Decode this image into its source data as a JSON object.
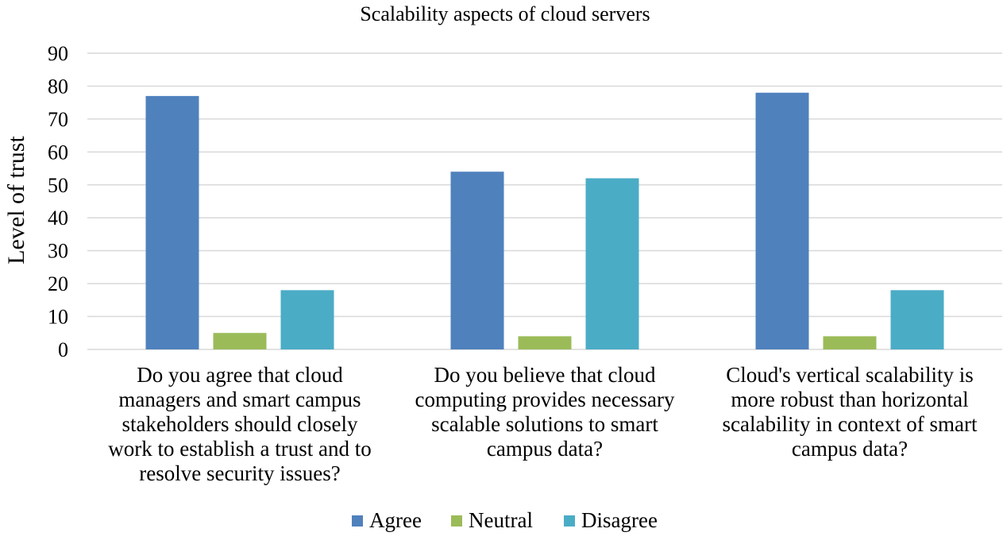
{
  "chart_data": {
    "type": "bar",
    "title": "Scalability aspects of cloud servers",
    "xlabel": "",
    "ylabel": "Level of trust",
    "ylim": [
      0,
      90
    ],
    "yticks": [
      0,
      10,
      20,
      30,
      40,
      50,
      60,
      70,
      80,
      90
    ],
    "grid": true,
    "legend_position": "bottom",
    "categories": [
      [
        "Do you agree that cloud",
        "managers and smart campus",
        "stakeholders should closely",
        "work to establish a trust and to",
        "resolve security issues?"
      ],
      [
        "Do you believe that cloud",
        "computing provides necessary",
        "scalable solutions to smart",
        "campus data?"
      ],
      [
        "Cloud's vertical scalability is",
        "more robust than horizontal",
        "scalability in context of smart",
        "campus data?"
      ]
    ],
    "series": [
      {
        "name": "Agree",
        "color": "#4f81bd",
        "values": [
          77,
          54,
          78
        ]
      },
      {
        "name": "Neutral",
        "color": "#9bbb59",
        "values": [
          5,
          4,
          4
        ]
      },
      {
        "name": "Disagree",
        "color": "#4bacc6",
        "values": [
          18,
          52,
          18
        ]
      }
    ]
  }
}
